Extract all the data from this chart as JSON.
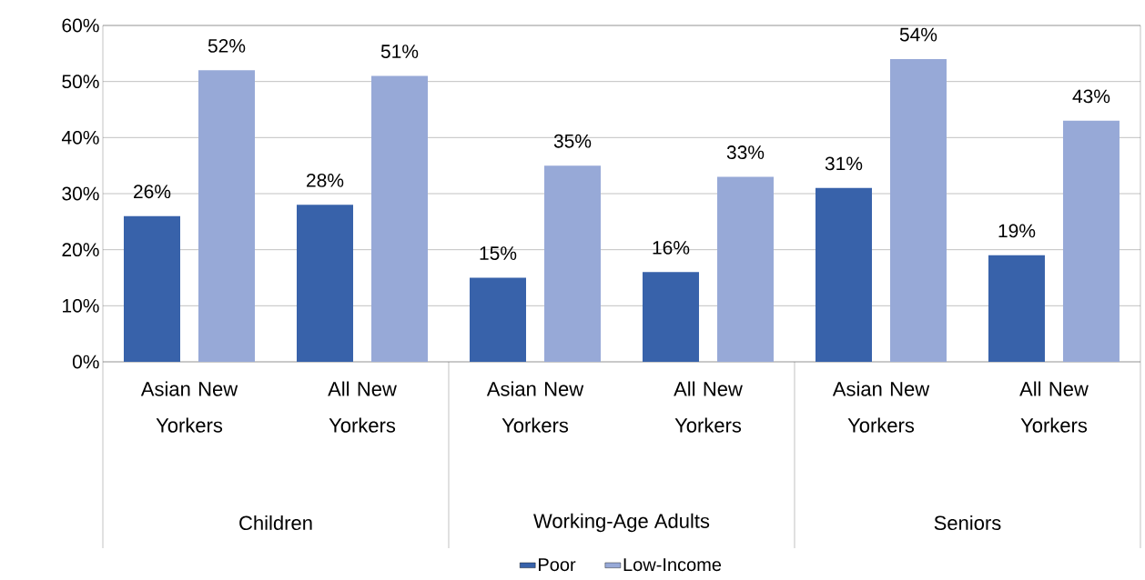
{
  "chart_data": {
    "type": "bar",
    "categories": [
      "Asian New Yorkers",
      "All New Yorkers",
      "Asian New Yorkers",
      "All New Yorkers",
      "Asian New Yorkers",
      "All New Yorkers"
    ],
    "series": [
      {
        "name": "Poor",
        "color": "#3862aa",
        "values": [
          26,
          28,
          15,
          16,
          31,
          19
        ],
        "value_labels": [
          "26%",
          "28%",
          "15%",
          "16%",
          "31%",
          "19%"
        ]
      },
      {
        "name": "Low-Income",
        "color": "#97a9d7",
        "values": [
          52,
          51,
          35,
          33,
          54,
          43
        ],
        "value_labels": [
          "52%",
          "51%",
          "35%",
          "33%",
          "54%",
          "43%"
        ]
      }
    ],
    "annotations": [
      "Children",
      "Working-Age Adults",
      "Seniors"
    ],
    "ylim": [
      0,
      60
    ],
    "yticks": [
      {
        "value": 0,
        "label": "0%"
      },
      {
        "value": 10,
        "label": "10%"
      },
      {
        "value": 20,
        "label": "20%"
      },
      {
        "value": 30,
        "label": "30%"
      },
      {
        "value": 40,
        "label": "40%"
      },
      {
        "value": 50,
        "label": "50%"
      },
      {
        "value": 60,
        "label": "60%"
      }
    ],
    "grid": "y",
    "legend": "bottom"
  }
}
